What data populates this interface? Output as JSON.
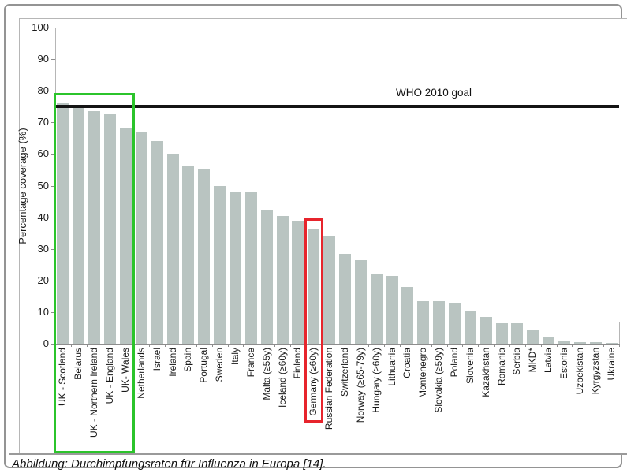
{
  "figure": {
    "caption": "Abbildung: Durchimpfungsraten für Influenza in Europa [14]."
  },
  "chart_data": {
    "type": "bar",
    "title": "",
    "xlabel": "",
    "ylabel": "Percentage coverage (%)",
    "ylim": [
      0,
      100
    ],
    "yticks": [
      100,
      90,
      80,
      70,
      60,
      50,
      40,
      30,
      20,
      10,
      0
    ],
    "grid": false,
    "legend_position": "none",
    "bar_color": "#b9c4c1",
    "categories": [
      "UK - Scotland",
      "Belarus",
      "UK - Northern Ireland",
      "UK - England",
      "UK- Wales",
      "Netherlands",
      "Israel",
      "Ireland",
      "Spain",
      "Portugal",
      "Sweden",
      "Italy",
      "France",
      "Malta (≥55y)",
      "Iceland (≥60y)",
      "Finland",
      "Germany (≥60y)",
      "Russian Federation",
      "Switzerland",
      "Norway (≥65-79y)",
      "Hungary (≥60y)",
      "Lithuania",
      "Croatia",
      "Montenegro",
      "Slovakia (≥59y)",
      "Poland",
      "Slovenia",
      "Kazakhstan",
      "Romania",
      "Serbia",
      "MKD*",
      "Latvia",
      "Estonia",
      "Uzbekistan",
      "Kyrgyzstan",
      "Ukraine"
    ],
    "values": [
      76,
      74.5,
      73.5,
      72.5,
      68,
      67,
      64,
      60,
      56,
      55,
      50,
      48,
      48,
      42.5,
      40.5,
      39,
      36.5,
      34,
      28.5,
      26.5,
      22,
      21.5,
      18,
      13.5,
      13.5,
      13,
      10.5,
      8.5,
      6.5,
      6.5,
      4.5,
      2,
      1,
      0.5,
      0.4,
      0.3
    ],
    "reference_line": {
      "value": 75,
      "label": "WHO 2010 goal",
      "color": "#141414"
    },
    "annotations": [
      {
        "type": "highlight-box",
        "color": "#2bc42b",
        "start_index": 0,
        "end_index": 4
      },
      {
        "type": "highlight-box",
        "color": "#e7242c",
        "start_index": 16,
        "end_index": 16
      }
    ]
  }
}
